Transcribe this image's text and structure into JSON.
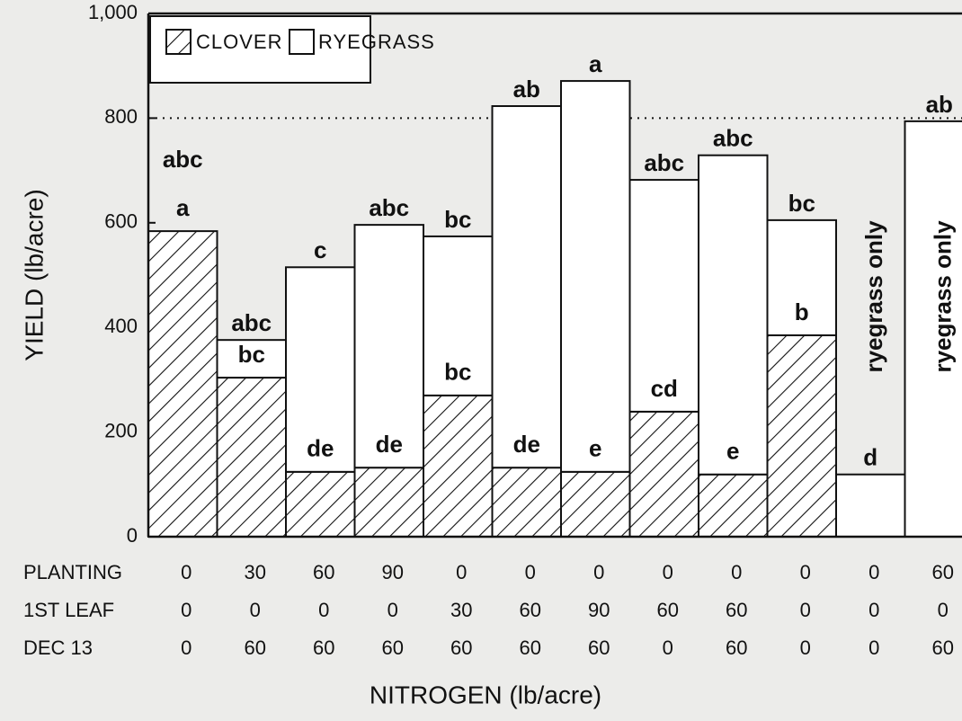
{
  "chart_data": {
    "type": "stacked_bar",
    "ylabel": "YIELD (lb/acre)",
    "xlabel": "NITROGEN (lb/acre)",
    "ylim": [
      0,
      1000
    ],
    "yticks": [
      0,
      200,
      400,
      600,
      800,
      {
        "value": 1000,
        "label": "1,000"
      }
    ],
    "reference_line": 800,
    "series": [
      {
        "name": "CLOVER",
        "color": "#111111",
        "pattern": "hatch",
        "values": [
          584,
          304,
          124,
          132,
          270,
          132,
          124,
          239,
          119,
          385,
          0,
          0
        ],
        "letters": [
          "a",
          "bc",
          "de",
          "de",
          "bc",
          "de",
          "e",
          "cd",
          "e",
          "b",
          null,
          null
        ]
      },
      {
        "name": "RYEGRASS",
        "color": "#ffffff",
        "pattern": "none",
        "values": [
          0,
          72,
          391,
          464,
          304,
          691,
          747,
          443,
          610,
          220,
          119,
          794
        ]
      }
    ],
    "total_letters": [
      "abc",
      "abc",
      "c",
      "abc",
      "bc",
      "ab",
      "a",
      "abc",
      "abc",
      "bc",
      "d",
      "ab"
    ],
    "bar_notes": [
      null,
      null,
      null,
      null,
      null,
      null,
      null,
      null,
      null,
      null,
      "ryegrass only",
      "ryegrass only"
    ],
    "treatments": [
      {
        "label": "PLANTING",
        "values": [
          "0",
          "30",
          "60",
          "90",
          "0",
          "0",
          "0",
          "0",
          "0",
          "0",
          "0",
          "60"
        ]
      },
      {
        "label": "1ST LEAF",
        "values": [
          "0",
          "0",
          "0",
          "0",
          "30",
          "60",
          "90",
          "60",
          "60",
          "0",
          "0",
          "0"
        ]
      },
      {
        "label": "DEC 13",
        "values": [
          "0",
          "60",
          "60",
          "60",
          "60",
          "60",
          "60",
          "0",
          "60",
          "0",
          "0",
          "60"
        ]
      }
    ]
  }
}
